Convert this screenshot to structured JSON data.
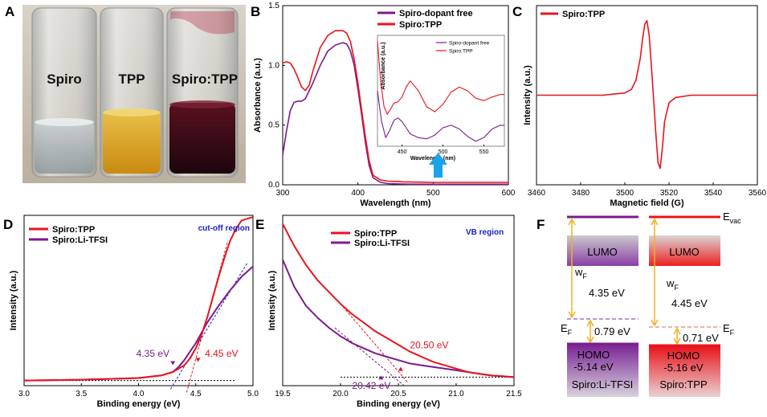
{
  "colors": {
    "red": "#e8141c",
    "purple": "#7d1a8c",
    "blue_text": "#1a23c9",
    "arrow_blue": "#1aa3e8",
    "vial_dark": "#2a0a12",
    "vial_yellow": "#d9a01a"
  },
  "panels": {
    "a": "A",
    "b": "B",
    "c": "C",
    "d": "D",
    "e": "E",
    "f": "F"
  },
  "photo": {
    "labels": [
      "Spiro",
      "TPP",
      "Spiro:TPP"
    ]
  },
  "chart_data": [
    {
      "id": "B",
      "type": "line",
      "xlabel": "Wavelength (nm)",
      "ylabel": "Absorbance (a.u.)",
      "xlim": [
        300,
        600
      ],
      "ylim": [
        0,
        1.5
      ],
      "xticks": [
        300,
        400,
        500,
        600
      ],
      "yticks": [
        0.0,
        0.5,
        1.0,
        1.5
      ],
      "ytick_labels": [
        "0.0",
        "0.5",
        "1.0",
        "1.5"
      ],
      "legend": [
        "Spiro-dopant free",
        "Spiro:TPP"
      ],
      "series": [
        {
          "name": "Spiro-dopant free",
          "color": "purple",
          "x": [
            300,
            305,
            310,
            315,
            320,
            325,
            330,
            340,
            350,
            360,
            370,
            380,
            385,
            390,
            395,
            400,
            405,
            410,
            415,
            420,
            430,
            440,
            450,
            460,
            480,
            500,
            520,
            540,
            560,
            600
          ],
          "y": [
            0.25,
            0.45,
            0.62,
            0.69,
            0.7,
            0.7,
            0.72,
            0.85,
            1.0,
            1.12,
            1.17,
            1.19,
            1.18,
            1.12,
            1.0,
            0.8,
            0.58,
            0.35,
            0.16,
            0.06,
            0.02,
            0.01,
            0.008,
            0.006,
            0.005,
            0.005,
            0.005,
            0.005,
            0.005,
            0.005
          ]
        },
        {
          "name": "Spiro:TPP",
          "color": "red",
          "x": [
            300,
            305,
            310,
            315,
            320,
            325,
            330,
            335,
            340,
            350,
            360,
            370,
            380,
            385,
            390,
            395,
            400,
            405,
            410,
            415,
            420,
            430,
            440,
            450,
            460,
            480,
            500,
            520,
            540,
            560,
            600
          ],
          "y": [
            1.02,
            1.03,
            1.02,
            0.97,
            0.9,
            0.82,
            0.79,
            0.83,
            0.95,
            1.15,
            1.25,
            1.29,
            1.29,
            1.27,
            1.2,
            1.05,
            0.85,
            0.62,
            0.4,
            0.2,
            0.08,
            0.04,
            0.03,
            0.028,
            0.025,
            0.022,
            0.02,
            0.02,
            0.02,
            0.02,
            0.02
          ]
        }
      ],
      "inset": {
        "xlabel": "Wavelength (nm)",
        "ylabel": "Absorbance (a.u.)",
        "xlim": [
          420,
          575
        ],
        "xticks": [
          450,
          500,
          550
        ],
        "legend": [
          "Spiro-dopant free",
          "Spiro:TPP"
        ],
        "series": [
          {
            "name": "Spiro-dopant free",
            "color": "purple",
            "x": [
              420,
              425,
              430,
              435,
              440,
              445,
              450,
              455,
              460,
              470,
              480,
              490,
              500,
              510,
              520,
              530,
              540,
              550,
              560,
              570,
              575
            ],
            "y": [
              0.55,
              0.3,
              0.17,
              0.23,
              0.31,
              0.33,
              0.3,
              0.25,
              0.2,
              0.17,
              0.16,
              0.19,
              0.25,
              0.27,
              0.24,
              0.18,
              0.14,
              0.17,
              0.24,
              0.27,
              0.27
            ]
          },
          {
            "name": "Spiro:TPP",
            "color": "red",
            "x": [
              420,
              424,
              428,
              432,
              436,
              440,
              445,
              450,
              455,
              460,
              470,
              480,
              490,
              500,
              510,
              520,
              530,
              540,
              550,
              560,
              570,
              575
            ],
            "y": [
              0.95,
              0.62,
              0.42,
              0.36,
              0.4,
              0.45,
              0.46,
              0.5,
              0.58,
              0.63,
              0.55,
              0.42,
              0.38,
              0.44,
              0.54,
              0.58,
              0.55,
              0.49,
              0.47,
              0.5,
              0.52,
              0.52
            ]
          }
        ]
      },
      "annotations": [
        "arrow"
      ]
    },
    {
      "id": "C",
      "type": "line",
      "xlabel": "Magnetic field (G)",
      "ylabel": "Intensity (a.u.)",
      "xlim": [
        3460,
        3560
      ],
      "xticks": [
        3460,
        3480,
        3500,
        3520,
        3540,
        3560
      ],
      "ylim": [
        -1.2,
        1.2
      ],
      "legend": [
        "Spiro:TPP"
      ],
      "series": [
        {
          "name": "Spiro:TPP",
          "color": "red",
          "x": [
            3460,
            3490,
            3500,
            3503,
            3505,
            3507,
            3508,
            3509,
            3510,
            3511,
            3512,
            3513,
            3514,
            3515,
            3516,
            3517,
            3518,
            3520,
            3523,
            3530,
            3560
          ],
          "y": [
            0.0,
            0.0,
            0.03,
            0.08,
            0.2,
            0.5,
            0.75,
            0.95,
            1.0,
            0.8,
            0.4,
            -0.05,
            -0.5,
            -0.9,
            -0.98,
            -0.7,
            -0.35,
            -0.1,
            -0.03,
            0.0,
            0.0
          ]
        }
      ]
    },
    {
      "id": "D",
      "type": "line",
      "xlabel": "Binding energy (eV)",
      "ylabel": "Intensity (a.u.)",
      "xlim": [
        3.0,
        5.0
      ],
      "xticks": [
        3.0,
        3.5,
        4.0,
        4.5,
        5.0
      ],
      "xtick_labels": [
        "3.0",
        "3.5",
        "4.0",
        "4.5",
        "5.0"
      ],
      "ylim": [
        0,
        1.0
      ],
      "legend": [
        "Spiro:TPP",
        "Spiro:Li-TFSI"
      ],
      "region_label": "cut-off region",
      "annotations": [
        "4.35 eV",
        "4.45 eV"
      ],
      "series": [
        {
          "name": "Spiro:TPP",
          "color": "red",
          "x": [
            3.0,
            3.5,
            4.0,
            4.2,
            4.3,
            4.4,
            4.45,
            4.5,
            4.55,
            4.6,
            4.65,
            4.7,
            4.75,
            4.8,
            4.85,
            4.9,
            5.0
          ],
          "y": [
            0.03,
            0.035,
            0.045,
            0.06,
            0.08,
            0.12,
            0.16,
            0.22,
            0.3,
            0.4,
            0.52,
            0.64,
            0.75,
            0.85,
            0.92,
            0.97,
            0.99
          ]
        },
        {
          "name": "Spiro:Li-TFSI",
          "color": "purple",
          "x": [
            3.0,
            3.5,
            4.0,
            4.2,
            4.3,
            4.35,
            4.4,
            4.45,
            4.5,
            4.55,
            4.6,
            4.7,
            4.8,
            4.9,
            5.0
          ],
          "y": [
            0.03,
            0.035,
            0.045,
            0.06,
            0.08,
            0.11,
            0.15,
            0.2,
            0.25,
            0.31,
            0.37,
            0.47,
            0.56,
            0.64,
            0.7
          ]
        }
      ]
    },
    {
      "id": "E",
      "type": "line",
      "xlabel": "Binding energy (eV)",
      "ylabel": "Intensity (a.u.)",
      "xlim": [
        19.5,
        21.5
      ],
      "xticks": [
        19.5,
        20.0,
        20.5,
        21.0,
        21.5
      ],
      "xtick_labels": [
        "19.5",
        "20.0",
        "20.5",
        "21.0",
        "21.5"
      ],
      "ylim": [
        0,
        1.0
      ],
      "legend": [
        "Spiro:TPP",
        "Spiro:Li-TFSI"
      ],
      "region_label": "VB region",
      "annotations": [
        "20.50 eV",
        "20.42 eV"
      ],
      "series": [
        {
          "name": "Spiro:TPP",
          "color": "red",
          "x": [
            19.5,
            19.6,
            19.7,
            19.8,
            19.9,
            20.0,
            20.1,
            20.2,
            20.3,
            20.4,
            20.5,
            20.6,
            20.7,
            20.8,
            20.9,
            21.0,
            21.1,
            21.2,
            21.3,
            21.4,
            21.5
          ],
          "y": [
            0.95,
            0.82,
            0.71,
            0.62,
            0.55,
            0.48,
            0.42,
            0.37,
            0.32,
            0.28,
            0.24,
            0.2,
            0.17,
            0.14,
            0.12,
            0.1,
            0.08,
            0.07,
            0.06,
            0.055,
            0.05
          ]
        },
        {
          "name": "Spiro:Li-TFSI",
          "color": "purple",
          "x": [
            19.5,
            19.6,
            19.7,
            19.8,
            19.9,
            20.0,
            20.1,
            20.2,
            20.3,
            20.4,
            20.5,
            20.6,
            20.7,
            20.8,
            20.9,
            21.0,
            21.1,
            21.2,
            21.3,
            21.4,
            21.5
          ],
          "y": [
            0.74,
            0.58,
            0.47,
            0.4,
            0.34,
            0.29,
            0.25,
            0.22,
            0.19,
            0.17,
            0.15,
            0.13,
            0.12,
            0.11,
            0.1,
            0.09,
            0.08,
            0.07,
            0.06,
            0.055,
            0.05
          ]
        }
      ]
    }
  ],
  "diagram_f": {
    "evac": "E",
    "evac_sub": "vac",
    "ef": "E",
    "ef_sub": "F",
    "wf": "w",
    "wf_sub": "F",
    "left": {
      "lumo": "LUMO",
      "wf_value": "4.35 eV",
      "gap": "0.79 eV",
      "homo": "HOMO",
      "homo_value": "-5.14 eV",
      "name": "Spiro:Li-TFSI"
    },
    "right": {
      "lumo": "LUMO",
      "wf_value": "4.45 eV",
      "gap": "0.71 eV",
      "homo": "HOMO",
      "homo_value": "-5.16 eV",
      "name": "Spiro:TPP"
    }
  }
}
